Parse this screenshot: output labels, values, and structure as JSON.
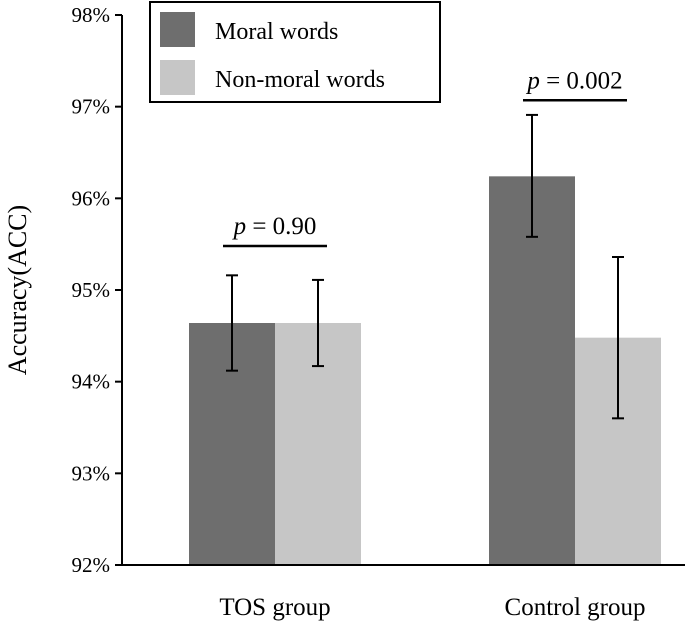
{
  "chart_data": {
    "type": "bar",
    "ylabel": "Accuracy(ACC)",
    "ylim": [
      92,
      98
    ],
    "yticks": [
      92,
      93,
      94,
      95,
      96,
      97,
      98
    ],
    "ytick_labels": [
      "92%",
      "93%",
      "94%",
      "95%",
      "96%",
      "97%",
      "98%"
    ],
    "categories": [
      "TOS group",
      "Control group"
    ],
    "series": [
      {
        "name": "Moral words",
        "color": "#6e6e6e",
        "values": [
          94.64,
          96.24
        ],
        "error_low": [
          94.12,
          95.58
        ],
        "error_high": [
          95.16,
          96.91
        ]
      },
      {
        "name": "Non-moral words",
        "color": "#c6c6c6",
        "values": [
          94.64,
          94.48
        ],
        "error_low": [
          94.17,
          93.6
        ],
        "error_high": [
          95.11,
          95.36
        ]
      }
    ],
    "annotations": [
      {
        "category": "TOS group",
        "p_symbol": "p",
        "p_text": " = 0.90",
        "y": 95.48
      },
      {
        "category": "Control group",
        "p_symbol": "p",
        "p_text": " = 0.002",
        "y": 97.07
      }
    ],
    "legend_position": "top-left",
    "grid": false
  }
}
